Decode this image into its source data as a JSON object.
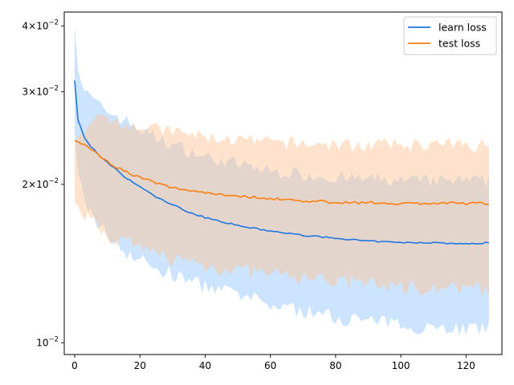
{
  "chart_data": {
    "type": "line",
    "title": "",
    "xlabel": "",
    "ylabel": "",
    "xlim": [
      -3.2,
      131
    ],
    "ylim": [
      0.0095,
      0.0425
    ],
    "yscale": "log",
    "grid": false,
    "legend_position": "upper right",
    "x_ticks": [
      0,
      20,
      40,
      60,
      80,
      100,
      120
    ],
    "x_tick_labels": [
      "0",
      "20",
      "40",
      "60",
      "80",
      "100",
      "120"
    ],
    "y_ticks": [
      0.01,
      0.02,
      0.03,
      0.04
    ],
    "y_tick_labels": [
      {
        "mantissa": "10",
        "exp": "−2",
        "prefix": ""
      },
      {
        "mantissa": "10",
        "exp": "−2",
        "prefix": "2×"
      },
      {
        "mantissa": "10",
        "exp": "−2",
        "prefix": "3×"
      },
      {
        "mantissa": "10",
        "exp": "−2",
        "prefix": "4×"
      }
    ],
    "series": [
      {
        "name": "learn loss",
        "color": "#1f77e4",
        "band_color": "#8fc4ff",
        "mean_knots": [
          [
            0,
            0.0315
          ],
          [
            1,
            0.0265
          ],
          [
            3,
            0.0245
          ],
          [
            5,
            0.0236
          ],
          [
            8,
            0.0225
          ],
          [
            12,
            0.0215
          ],
          [
            16,
            0.0205
          ],
          [
            20,
            0.0198
          ],
          [
            25,
            0.0189
          ],
          [
            30,
            0.0183
          ],
          [
            35,
            0.0177
          ],
          [
            40,
            0.0173
          ],
          [
            45,
            0.017
          ],
          [
            50,
            0.0167
          ],
          [
            60,
            0.0163
          ],
          [
            70,
            0.016
          ],
          [
            80,
            0.0158
          ],
          [
            90,
            0.0156
          ],
          [
            100,
            0.0155
          ],
          [
            110,
            0.0155
          ],
          [
            120,
            0.0154
          ],
          [
            127,
            0.0155
          ]
        ],
        "upper_knots": [
          [
            0,
            0.04
          ],
          [
            1,
            0.033
          ],
          [
            3,
            0.03
          ],
          [
            8,
            0.028
          ],
          [
            15,
            0.0265
          ],
          [
            25,
            0.0245
          ],
          [
            40,
            0.0225
          ],
          [
            60,
            0.0212
          ],
          [
            80,
            0.0206
          ],
          [
            100,
            0.0203
          ],
          [
            127,
            0.0203
          ]
        ],
        "lower_knots": [
          [
            0,
            0.025
          ],
          [
            1,
            0.021
          ],
          [
            3,
            0.0185
          ],
          [
            8,
            0.0165
          ],
          [
            15,
            0.015
          ],
          [
            25,
            0.0138
          ],
          [
            40,
            0.0128
          ],
          [
            60,
            0.0118
          ],
          [
            80,
            0.0112
          ],
          [
            100,
            0.0108
          ],
          [
            127,
            0.0106
          ]
        ]
      },
      {
        "name": "test loss",
        "color": "#ff7f0e",
        "band_color": "#ffc28f",
        "mean_knots": [
          [
            0,
            0.0242
          ],
          [
            2,
            0.024
          ],
          [
            5,
            0.0233
          ],
          [
            8,
            0.0226
          ],
          [
            12,
            0.0217
          ],
          [
            16,
            0.0211
          ],
          [
            20,
            0.0206
          ],
          [
            25,
            0.0201
          ],
          [
            30,
            0.0197
          ],
          [
            40,
            0.0193
          ],
          [
            50,
            0.019
          ],
          [
            60,
            0.0188
          ],
          [
            70,
            0.0186
          ],
          [
            80,
            0.0185
          ],
          [
            100,
            0.0184
          ],
          [
            127,
            0.0184
          ]
        ],
        "upper_knots": [
          [
            0,
            0.0242
          ],
          [
            5,
            0.0262
          ],
          [
            10,
            0.0268
          ],
          [
            20,
            0.0258
          ],
          [
            40,
            0.0246
          ],
          [
            60,
            0.024
          ],
          [
            80,
            0.0238
          ],
          [
            100,
            0.0238
          ],
          [
            127,
            0.0238
          ]
        ],
        "lower_knots": [
          [
            0,
            0.0185
          ],
          [
            5,
            0.017
          ],
          [
            10,
            0.016
          ],
          [
            20,
            0.015
          ],
          [
            40,
            0.014
          ],
          [
            60,
            0.0135
          ],
          [
            80,
            0.0131
          ],
          [
            100,
            0.0128
          ],
          [
            127,
            0.0126
          ]
        ]
      }
    ]
  }
}
